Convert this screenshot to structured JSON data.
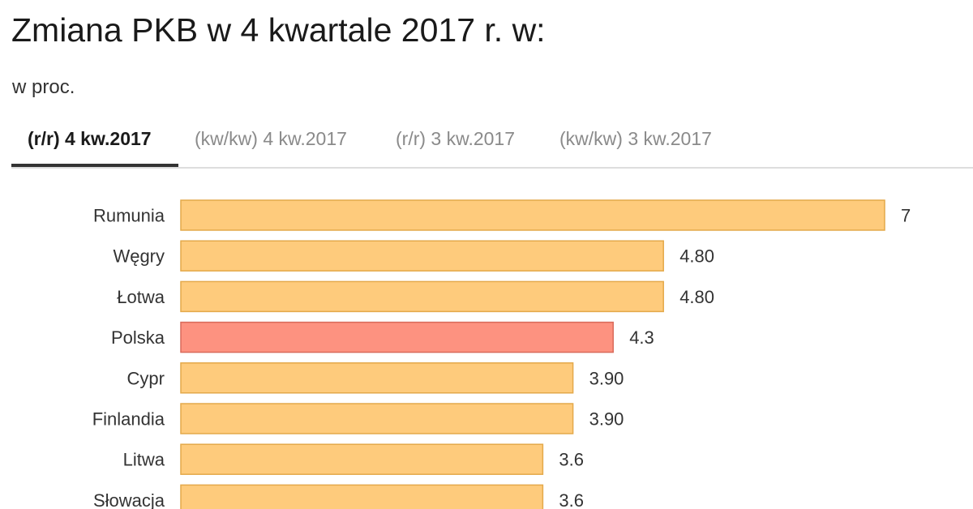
{
  "header": {
    "title": "Zmiana PKB w 4 kwartale 2017 r. w:",
    "subtitle": "w proc."
  },
  "tabs": [
    {
      "label": "(r/r) 4 kw.2017",
      "active": true
    },
    {
      "label": "(kw/kw) 4 kw.2017",
      "active": false
    },
    {
      "label": "(r/r) 3 kw.2017",
      "active": false
    },
    {
      "label": "(kw/kw) 3 kw.2017",
      "active": false
    }
  ],
  "colors": {
    "bar": "#fecb7c",
    "bar_border": "#e4a94a",
    "highlight": "#fd9280",
    "highlight_border": "#d96a5a"
  },
  "chart_data": {
    "type": "bar",
    "orientation": "horizontal",
    "title": "Zmiana PKB w 4 kwartale 2017 r. w:",
    "subtitle": "w proc.",
    "categories": [
      "Rumunia",
      "Węgry",
      "Łotwa",
      "Polska",
      "Cypr",
      "Finlandia",
      "Litwa",
      "Słowacja"
    ],
    "values": [
      7,
      4.8,
      4.8,
      4.3,
      3.9,
      3.9,
      3.6,
      3.6
    ],
    "value_labels": [
      "7",
      "4.80",
      "4.80",
      "4.3",
      "3.90",
      "3.90",
      "3.6",
      "3.6"
    ],
    "highlight": "Polska",
    "grid": false,
    "xlim": [
      0,
      7
    ]
  }
}
